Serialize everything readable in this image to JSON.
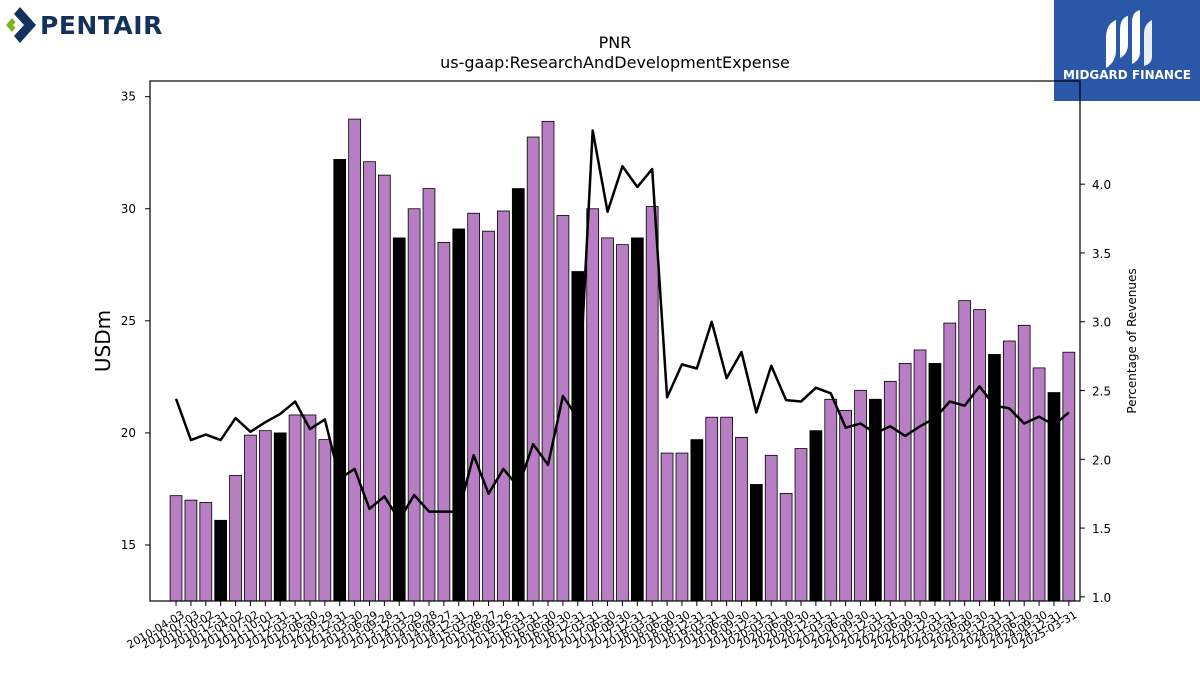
{
  "logos": {
    "left": {
      "text": "PENTAIR",
      "color": "#14305c",
      "accent": "#7ab51d"
    },
    "right": {
      "text": "MIDGARD FINANCE",
      "background": "#2a57a8"
    }
  },
  "chart_data": {
    "type": "bar",
    "title": "PNR",
    "subtitle": "us-gaap:ResearchAndDevelopmentExpense",
    "ylabel": "USDm",
    "y2label": "Percentage of Revenues",
    "ylim": [
      12.5,
      35.7
    ],
    "y2lim": [
      0.97,
      4.75
    ],
    "yticks": [
      15,
      20,
      25,
      30,
      35
    ],
    "y2ticks": [
      1.0,
      1.5,
      2.0,
      2.5,
      3.0,
      3.5,
      4.0
    ],
    "grid": false,
    "legend": "none",
    "bar_color": "#b77ec4",
    "q4_bar_color": "#000000",
    "line_color": "#000000",
    "categories": [
      "2010-04-03",
      "2010-07-03",
      "2010-10-02",
      "2010-12-31",
      "2011-04-02",
      "2011-07-02",
      "2011-10-01",
      "2011-12-31",
      "2012-03-31",
      "2012-06-30",
      "2012-09-29",
      "2012-12-31",
      "2013-03-30",
      "2013-06-29",
      "2013-09-28",
      "2013-12-31",
      "2014-03-29",
      "2014-06-28",
      "2014-09-27",
      "2014-12-31",
      "2015-03-28",
      "2015-06-27",
      "2015-09-26",
      "2015-12-31",
      "2016-03-31",
      "2016-06-30",
      "2016-09-30",
      "2016-12-31",
      "2017-03-31",
      "2017-06-30",
      "2017-09-30",
      "2017-12-31",
      "2018-03-31",
      "2018-06-30",
      "2018-09-30",
      "2018-12-31",
      "2019-03-31",
      "2019-06-30",
      "2019-09-30",
      "2019-12-31",
      "2020-03-31",
      "2020-06-30",
      "2020-09-30",
      "2020-12-31",
      "2021-03-31",
      "2021-06-30",
      "2021-09-30",
      "2021-12-31",
      "2022-03-31",
      "2022-06-30",
      "2022-09-30",
      "2022-12-31",
      "2023-03-31",
      "2023-06-30",
      "2023-09-30",
      "2023-12-31",
      "2024-03-31",
      "2024-06-30",
      "2024-09-30",
      "2024-12-31",
      "2025-03-31"
    ],
    "series": [
      {
        "type": "bar",
        "values": [
          17.2,
          17.0,
          16.9,
          16.1,
          18.1,
          19.9,
          20.1,
          20.0,
          20.8,
          20.8,
          19.7,
          32.2,
          34.0,
          32.1,
          31.5,
          28.7,
          30.0,
          30.9,
          28.5,
          29.1,
          29.8,
          29.0,
          29.9,
          30.9,
          33.2,
          33.9,
          29.7,
          27.2,
          30.0,
          28.7,
          28.4,
          28.7,
          30.1,
          19.1,
          19.1,
          19.7,
          20.7,
          20.7,
          19.8,
          17.7,
          19.0,
          17.3,
          19.3,
          20.1,
          21.5,
          21.0,
          21.9,
          21.5,
          22.3,
          23.1,
          23.7,
          23.1,
          24.9,
          25.9,
          25.5,
          23.5,
          24.1,
          24.8,
          22.9,
          21.8,
          23.6
        ],
        "highlight": [
          false,
          false,
          false,
          true,
          false,
          false,
          false,
          true,
          false,
          false,
          false,
          true,
          false,
          false,
          false,
          true,
          false,
          false,
          false,
          true,
          false,
          false,
          false,
          true,
          false,
          false,
          false,
          true,
          false,
          false,
          false,
          true,
          false,
          false,
          false,
          true,
          false,
          false,
          false,
          true,
          false,
          false,
          false,
          true,
          false,
          false,
          false,
          true,
          false,
          false,
          false,
          true,
          false,
          false,
          false,
          true,
          false,
          false,
          false,
          true,
          false
        ]
      },
      {
        "type": "line",
        "axis": "right",
        "values": [
          2.44,
          2.14,
          2.18,
          2.14,
          2.3,
          2.2,
          2.27,
          2.33,
          2.42,
          2.22,
          2.29,
          1.86,
          1.93,
          1.64,
          1.73,
          1.56,
          1.74,
          1.62,
          1.62,
          1.62,
          2.03,
          1.75,
          1.93,
          1.8,
          2.11,
          1.96,
          2.46,
          2.3,
          4.39,
          3.8,
          4.13,
          3.98,
          4.11,
          2.45,
          2.69,
          2.66,
          3.0,
          2.59,
          2.78,
          2.34,
          2.68,
          2.43,
          2.42,
          2.52,
          2.48,
          2.23,
          2.26,
          2.19,
          2.24,
          2.17,
          2.24,
          2.3,
          2.42,
          2.39,
          2.53,
          2.39,
          2.37,
          2.26,
          2.31,
          2.25,
          2.34
        ]
      }
    ]
  }
}
